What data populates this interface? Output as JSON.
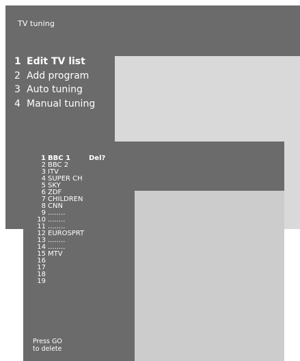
{
  "back_menu": {
    "title": "TV tuning",
    "items": [
      {
        "num": "1",
        "label": "Edit TV list",
        "selected": true
      },
      {
        "num": "2",
        "label": "Add program",
        "selected": false
      },
      {
        "num": "3",
        "label": "Auto tuning",
        "selected": false
      },
      {
        "num": "4",
        "label": "Manual tuning",
        "selected": false
      }
    ]
  },
  "program_list": {
    "delete_prompt": "Del?",
    "items": [
      {
        "num": "1",
        "name": "BBC 1",
        "selected": true
      },
      {
        "num": "2",
        "name": "BBC 2"
      },
      {
        "num": "3",
        "name": "ITV"
      },
      {
        "num": "4",
        "name": "SUPER CH"
      },
      {
        "num": "5",
        "name": "SKY"
      },
      {
        "num": "6",
        "name": "ZDF"
      },
      {
        "num": "7",
        "name": "CHILDREN"
      },
      {
        "num": "8",
        "name": "CNN"
      },
      {
        "num": "9",
        "name": "........"
      },
      {
        "num": "10",
        "name": "........"
      },
      {
        "num": "11",
        "name": "........"
      },
      {
        "num": "12",
        "name": "EUROSPRT"
      },
      {
        "num": "13",
        "name": "........"
      },
      {
        "num": "14",
        "name": "........"
      },
      {
        "num": "15",
        "name": "MTV"
      },
      {
        "num": "16",
        "name": ""
      },
      {
        "num": "17",
        "name": ""
      },
      {
        "num": "18",
        "name": ""
      },
      {
        "num": "19",
        "name": ""
      }
    ],
    "help_line1": "Press GO",
    "help_line2": "to delete"
  },
  "colors": {
    "panel_dark": "#6b6b6b",
    "panel_light": "#d9d9d9",
    "text": "#ffffff"
  }
}
